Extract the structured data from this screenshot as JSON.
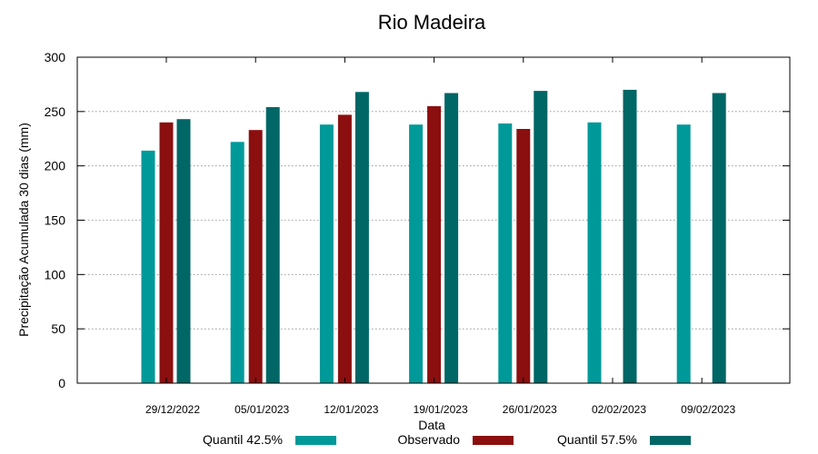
{
  "chart_data": {
    "type": "bar",
    "title": "Rio Madeira",
    "xlabel": "Data",
    "ylabel": "Precipitação Acumulada 30 dias (mm)",
    "ylim": [
      0,
      300
    ],
    "yticks": [
      0,
      50,
      100,
      150,
      200,
      250,
      300
    ],
    "grid": "horizontal dotted",
    "legend_position": "bottom",
    "categories": [
      "29/12/2022",
      "05/01/2023",
      "12/01/2023",
      "19/01/2023",
      "26/01/2023",
      "02/02/2023",
      "09/02/2023"
    ],
    "series": [
      {
        "name": "Quantil 42.5%",
        "color": "#009999",
        "values": [
          214,
          222,
          238,
          238,
          239,
          240,
          238
        ]
      },
      {
        "name": "Observado",
        "color": "#8b0f0f",
        "values": [
          240,
          233,
          247,
          255,
          234,
          null,
          null
        ]
      },
      {
        "name": "Quantil 57.5%",
        "color": "#006666",
        "values": [
          243,
          254,
          268,
          267,
          269,
          270,
          267
        ]
      }
    ]
  }
}
